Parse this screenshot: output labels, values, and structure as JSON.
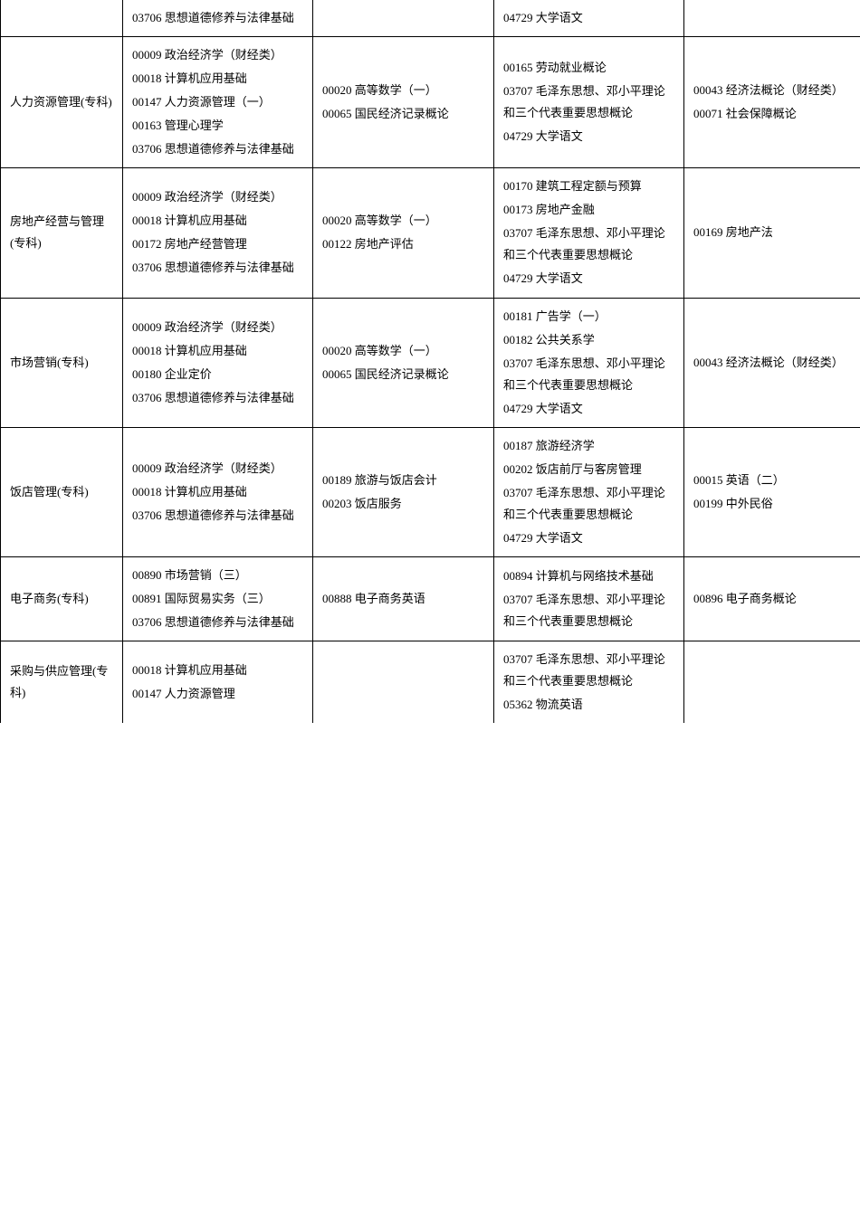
{
  "rows": [
    {
      "major": "",
      "majorTopOpen": true,
      "majorBottomOpen": false,
      "col2": [
        "03706 思想道德修养与法律基础"
      ],
      "col3": [],
      "col4": [
        "04729 大学语文"
      ],
      "col5": []
    },
    {
      "major": "人力资源管理(专科)",
      "majorTopOpen": false,
      "majorBottomOpen": false,
      "col2": [
        "00009 政治经济学（财经类）",
        "00018 计算机应用基础",
        "00147 人力资源管理（一）",
        "00163 管理心理学",
        "03706 思想道德修养与法律基础"
      ],
      "col3": [
        "00020 高等数学（一）",
        "00065 国民经济记录概论"
      ],
      "col4": [
        "00165 劳动就业概论",
        "03707 毛泽东思想、邓小平理论和三个代表重要思想概论",
        "04729 大学语文"
      ],
      "col5": [
        "00043 经济法概论（财经类）",
        "00071 社会保障概论"
      ]
    },
    {
      "major": "房地产经营与管理(专科)",
      "majorTopOpen": false,
      "majorBottomOpen": false,
      "col2": [
        "00009 政治经济学（财经类）",
        "00018 计算机应用基础",
        "00172 房地产经营管理",
        "03706 思想道德修养与法律基础"
      ],
      "col3": [
        "00020 高等数学（一）",
        "00122 房地产评估"
      ],
      "col4": [
        "00170 建筑工程定额与预算",
        "00173 房地产金融",
        "03707 毛泽东思想、邓小平理论和三个代表重要思想概论",
        "04729 大学语文"
      ],
      "col5": [
        "00169 房地产法"
      ]
    },
    {
      "major": "市场营销(专科)",
      "majorTopOpen": false,
      "majorBottomOpen": false,
      "col2": [
        "00009 政治经济学（财经类）",
        "00018 计算机应用基础",
        "00180 企业定价",
        "03706 思想道德修养与法律基础"
      ],
      "col3": [
        "00020 高等数学（一）",
        "00065 国民经济记录概论"
      ],
      "col4": [
        "00181 广告学（一）",
        "00182 公共关系学",
        "03707 毛泽东思想、邓小平理论和三个代表重要思想概论",
        "04729 大学语文"
      ],
      "col5": [
        "00043 经济法概论（财经类）"
      ]
    },
    {
      "major": "饭店管理(专科)",
      "majorTopOpen": false,
      "majorBottomOpen": false,
      "col2": [
        "00009 政治经济学（财经类）",
        "00018 计算机应用基础",
        "03706 思想道德修养与法律基础"
      ],
      "col3": [
        "00189 旅游与饭店会计",
        "00203 饭店服务"
      ],
      "col4": [
        "00187 旅游经济学",
        "00202 饭店前厅与客房管理",
        "03707 毛泽东思想、邓小平理论和三个代表重要思想概论",
        "04729 大学语文"
      ],
      "col5": [
        "00015 英语（二）",
        "00199 中外民俗"
      ]
    },
    {
      "major": "电子商务(专科)",
      "majorTopOpen": false,
      "majorBottomOpen": false,
      "col2": [
        "00890 市场营销（三）",
        "00891 国际贸易实务（三）",
        "03706 思想道德修养与法律基础"
      ],
      "col3": [
        "00888 电子商务英语"
      ],
      "col4": [
        "00894 计算机与网络技术基础",
        "03707 毛泽东思想、邓小平理论和三个代表重要思想概论"
      ],
      "col5": [
        "00896 电子商务概论"
      ]
    },
    {
      "major": "采购与供应管理(专科)",
      "majorTopOpen": false,
      "majorBottomOpen": true,
      "col2": [
        "00018 计算机应用基础",
        "00147 人力资源管理"
      ],
      "col3": [],
      "col4": [
        "03707 毛泽东思想、邓小平理论和三个代表重要思想概论",
        "05362 物流英语"
      ],
      "col5": []
    }
  ]
}
